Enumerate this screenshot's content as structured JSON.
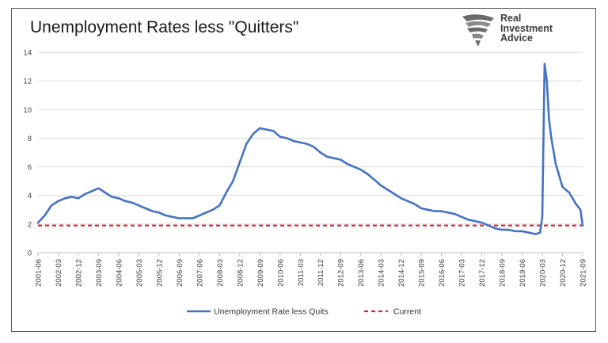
{
  "title": "Unemployment Rates less \"Quitters\"",
  "logo": {
    "lines": [
      "Real",
      "Investment",
      "Advice"
    ]
  },
  "colors": {
    "series": "#4472c4",
    "current": "#e0202a",
    "grid": "#d9d9d9"
  },
  "chart_data": {
    "type": "line",
    "title": "Unemployment Rates less \"Quitters\"",
    "xlabel": "",
    "ylabel": "",
    "ylim": [
      0,
      14
    ],
    "yticks": [
      0,
      2,
      4,
      6,
      8,
      10,
      12,
      14
    ],
    "grid": true,
    "legend_position": "bottom",
    "x_tick_labels": [
      "2001-06",
      "2002-03",
      "2002-12",
      "2003-09",
      "2004-06",
      "2005-03",
      "2005-12",
      "2006-09",
      "2007-06",
      "2008-03",
      "2008-12",
      "2009-09",
      "2010-06",
      "2011-03",
      "2011-12",
      "2012-09",
      "2013-06",
      "2014-03",
      "2014-12",
      "2015-09",
      "2016-06",
      "2017-03",
      "2017-12",
      "2018-09",
      "2019-06",
      "2020-03",
      "2020-12",
      "2021-09"
    ],
    "series": [
      {
        "name": "Unemployment Rate less Quits",
        "color": "#4472c4",
        "style": "solid",
        "points": [
          [
            "2001-06",
            2.1
          ],
          [
            "2001-09",
            2.6
          ],
          [
            "2001-12",
            3.3
          ],
          [
            "2002-03",
            3.6
          ],
          [
            "2002-06",
            3.8
          ],
          [
            "2002-09",
            3.9
          ],
          [
            "2002-12",
            3.8
          ],
          [
            "2003-03",
            4.1
          ],
          [
            "2003-06",
            4.3
          ],
          [
            "2003-09",
            4.5
          ],
          [
            "2003-12",
            4.2
          ],
          [
            "2004-03",
            3.9
          ],
          [
            "2004-06",
            3.8
          ],
          [
            "2004-09",
            3.6
          ],
          [
            "2004-12",
            3.5
          ],
          [
            "2005-03",
            3.3
          ],
          [
            "2005-06",
            3.1
          ],
          [
            "2005-09",
            2.9
          ],
          [
            "2005-12",
            2.8
          ],
          [
            "2006-03",
            2.6
          ],
          [
            "2006-06",
            2.5
          ],
          [
            "2006-09",
            2.4
          ],
          [
            "2006-12",
            2.4
          ],
          [
            "2007-03",
            2.4
          ],
          [
            "2007-06",
            2.6
          ],
          [
            "2007-09",
            2.8
          ],
          [
            "2007-12",
            3.0
          ],
          [
            "2008-03",
            3.3
          ],
          [
            "2008-06",
            4.2
          ],
          [
            "2008-09",
            5.0
          ],
          [
            "2008-12",
            6.3
          ],
          [
            "2009-03",
            7.6
          ],
          [
            "2009-06",
            8.3
          ],
          [
            "2009-09",
            8.7
          ],
          [
            "2009-12",
            8.6
          ],
          [
            "2010-03",
            8.5
          ],
          [
            "2010-06",
            8.1
          ],
          [
            "2010-09",
            8.0
          ],
          [
            "2010-12",
            7.8
          ],
          [
            "2011-03",
            7.7
          ],
          [
            "2011-06",
            7.6
          ],
          [
            "2011-09",
            7.4
          ],
          [
            "2011-12",
            7.0
          ],
          [
            "2012-03",
            6.7
          ],
          [
            "2012-06",
            6.6
          ],
          [
            "2012-09",
            6.5
          ],
          [
            "2012-12",
            6.2
          ],
          [
            "2013-03",
            6.0
          ],
          [
            "2013-06",
            5.8
          ],
          [
            "2013-09",
            5.5
          ],
          [
            "2013-12",
            5.1
          ],
          [
            "2014-03",
            4.7
          ],
          [
            "2014-06",
            4.4
          ],
          [
            "2014-09",
            4.1
          ],
          [
            "2014-12",
            3.8
          ],
          [
            "2015-03",
            3.6
          ],
          [
            "2015-06",
            3.4
          ],
          [
            "2015-09",
            3.1
          ],
          [
            "2015-12",
            3.0
          ],
          [
            "2016-03",
            2.9
          ],
          [
            "2016-06",
            2.9
          ],
          [
            "2016-09",
            2.8
          ],
          [
            "2016-12",
            2.7
          ],
          [
            "2017-03",
            2.5
          ],
          [
            "2017-06",
            2.3
          ],
          [
            "2017-09",
            2.2
          ],
          [
            "2017-12",
            2.1
          ],
          [
            "2018-03",
            1.9
          ],
          [
            "2018-06",
            1.7
          ],
          [
            "2018-09",
            1.6
          ],
          [
            "2018-12",
            1.6
          ],
          [
            "2019-03",
            1.5
          ],
          [
            "2019-06",
            1.5
          ],
          [
            "2019-09",
            1.4
          ],
          [
            "2019-12",
            1.3
          ],
          [
            "2020-02",
            1.4
          ],
          [
            "2020-03",
            2.5
          ],
          [
            "2020-04",
            13.2
          ],
          [
            "2020-05",
            12.0
          ],
          [
            "2020-06",
            9.3
          ],
          [
            "2020-07",
            8.0
          ],
          [
            "2020-09",
            6.2
          ],
          [
            "2020-12",
            4.6
          ],
          [
            "2021-03",
            4.2
          ],
          [
            "2021-06",
            3.4
          ],
          [
            "2021-08",
            3.0
          ],
          [
            "2021-09",
            1.9
          ]
        ]
      },
      {
        "name": "Current",
        "color": "#e0202a",
        "style": "dashed",
        "value": 1.9
      }
    ]
  }
}
